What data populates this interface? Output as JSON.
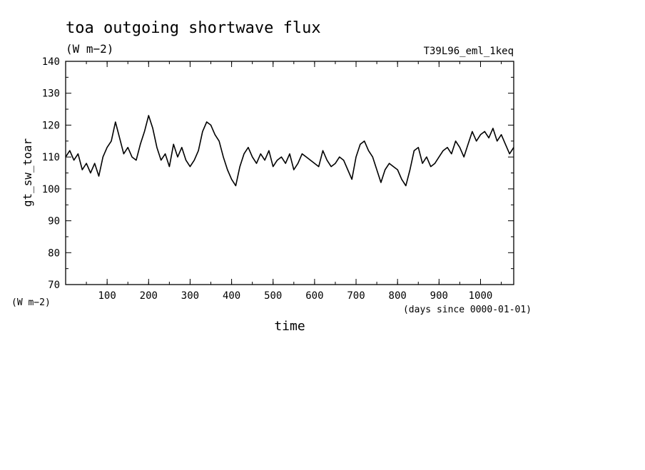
{
  "chart_data": {
    "type": "line",
    "title": "toa outgoing shortwave flux",
    "subtitle": "(W m−2)",
    "run_label": "T39L96_eml_1keq",
    "ylabel": "gt_sw_toar",
    "yunit": "(W m−2)",
    "xlabel": "time",
    "xunit": "(days since 0000-01-01)",
    "xlim": [
      0,
      1080
    ],
    "ylim": [
      70,
      140
    ],
    "xticks": [
      100,
      200,
      300,
      400,
      500,
      600,
      700,
      800,
      900,
      1000
    ],
    "yticks": [
      70,
      80,
      90,
      100,
      110,
      120,
      130,
      140
    ],
    "grid": false,
    "line_color": "#000000",
    "series": [
      {
        "x": [
          0,
          10,
          20,
          30,
          40,
          50,
          60,
          70,
          80,
          90,
          100,
          110,
          120,
          130,
          140,
          150,
          160,
          170,
          180,
          190,
          200,
          210,
          220,
          230,
          240,
          250,
          260,
          270,
          280,
          290,
          300,
          310,
          320,
          330,
          340,
          350,
          360,
          370,
          380,
          390,
          400,
          410,
          420,
          430,
          440,
          450,
          460,
          470,
          480,
          490,
          500,
          510,
          520,
          530,
          540,
          550,
          560,
          570,
          580,
          590,
          600,
          610,
          620,
          630,
          640,
          650,
          660,
          670,
          680,
          690,
          700,
          710,
          720,
          730,
          740,
          750,
          760,
          770,
          780,
          790,
          800,
          810,
          820,
          830,
          840,
          850,
          860,
          870,
          880,
          890,
          900,
          910,
          920,
          930,
          940,
          950,
          960,
          970,
          980,
          990,
          1000,
          1010,
          1020,
          1030,
          1040,
          1050,
          1060,
          1070,
          1080
        ],
        "values": [
          110,
          112,
          109,
          111,
          106,
          108,
          105,
          108,
          104,
          110,
          113,
          115,
          121,
          116,
          111,
          113,
          110,
          109,
          114,
          118,
          123,
          119,
          113,
          109,
          111,
          107,
          114,
          110,
          113,
          109,
          107,
          109,
          112,
          118,
          121,
          120,
          117,
          115,
          110,
          106,
          103,
          101,
          107,
          111,
          113,
          110,
          108,
          111,
          109,
          112,
          107,
          109,
          110,
          108,
          111,
          106,
          108,
          111,
          110,
          109,
          108,
          107,
          112,
          109,
          107,
          108,
          110,
          109,
          106,
          103,
          110,
          114,
          115,
          112,
          110,
          106,
          102,
          106,
          108,
          107,
          106,
          103,
          101,
          106,
          112,
          113,
          108,
          110,
          107,
          108,
          110,
          112,
          113,
          111,
          115,
          113,
          110,
          114,
          118,
          115,
          117,
          118,
          116,
          119,
          115,
          117,
          114,
          111,
          113
        ]
      }
    ]
  }
}
